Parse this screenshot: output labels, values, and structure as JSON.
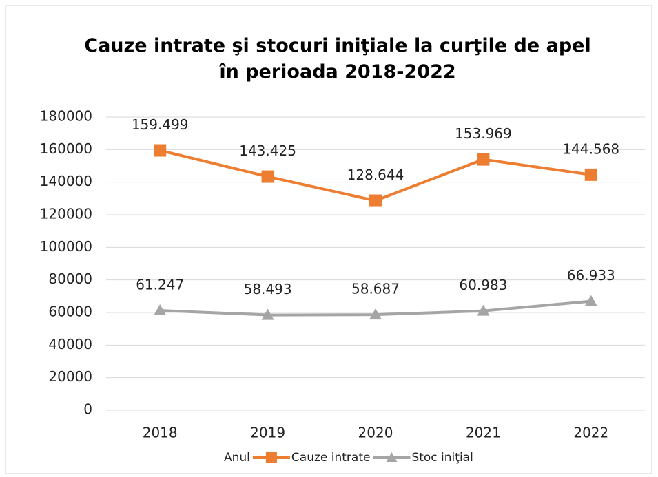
{
  "chart_data": {
    "type": "line",
    "title": "Cauze intrate şi stocuri iniţiale la curţile de apel în perioada 2018-2022",
    "categories": [
      "2018",
      "2019",
      "2020",
      "2021",
      "2022"
    ],
    "series": [
      {
        "name": "Anul",
        "color": null,
        "values": [
          null,
          null,
          null,
          null,
          null
        ]
      },
      {
        "name": "Cauze intrate",
        "color": "#ed7d31",
        "marker": "square",
        "values": [
          159499,
          143425,
          128644,
          153969,
          144568
        ],
        "value_labels": [
          "159.499",
          "143.425",
          "128.644",
          "153.969",
          "144.568"
        ]
      },
      {
        "name": "Stoc iniţial",
        "color": "#a5a5a5",
        "marker": "triangle",
        "values": [
          61247,
          58493,
          58687,
          60983,
          66933
        ],
        "value_labels": [
          "61.247",
          "58.493",
          "58.687",
          "60.983",
          "66.933"
        ]
      }
    ],
    "ylim": [
      0,
      180000
    ],
    "yticks": [
      0,
      20000,
      40000,
      60000,
      80000,
      100000,
      120000,
      140000,
      160000,
      180000
    ],
    "grid": true,
    "legend": "bottom"
  }
}
